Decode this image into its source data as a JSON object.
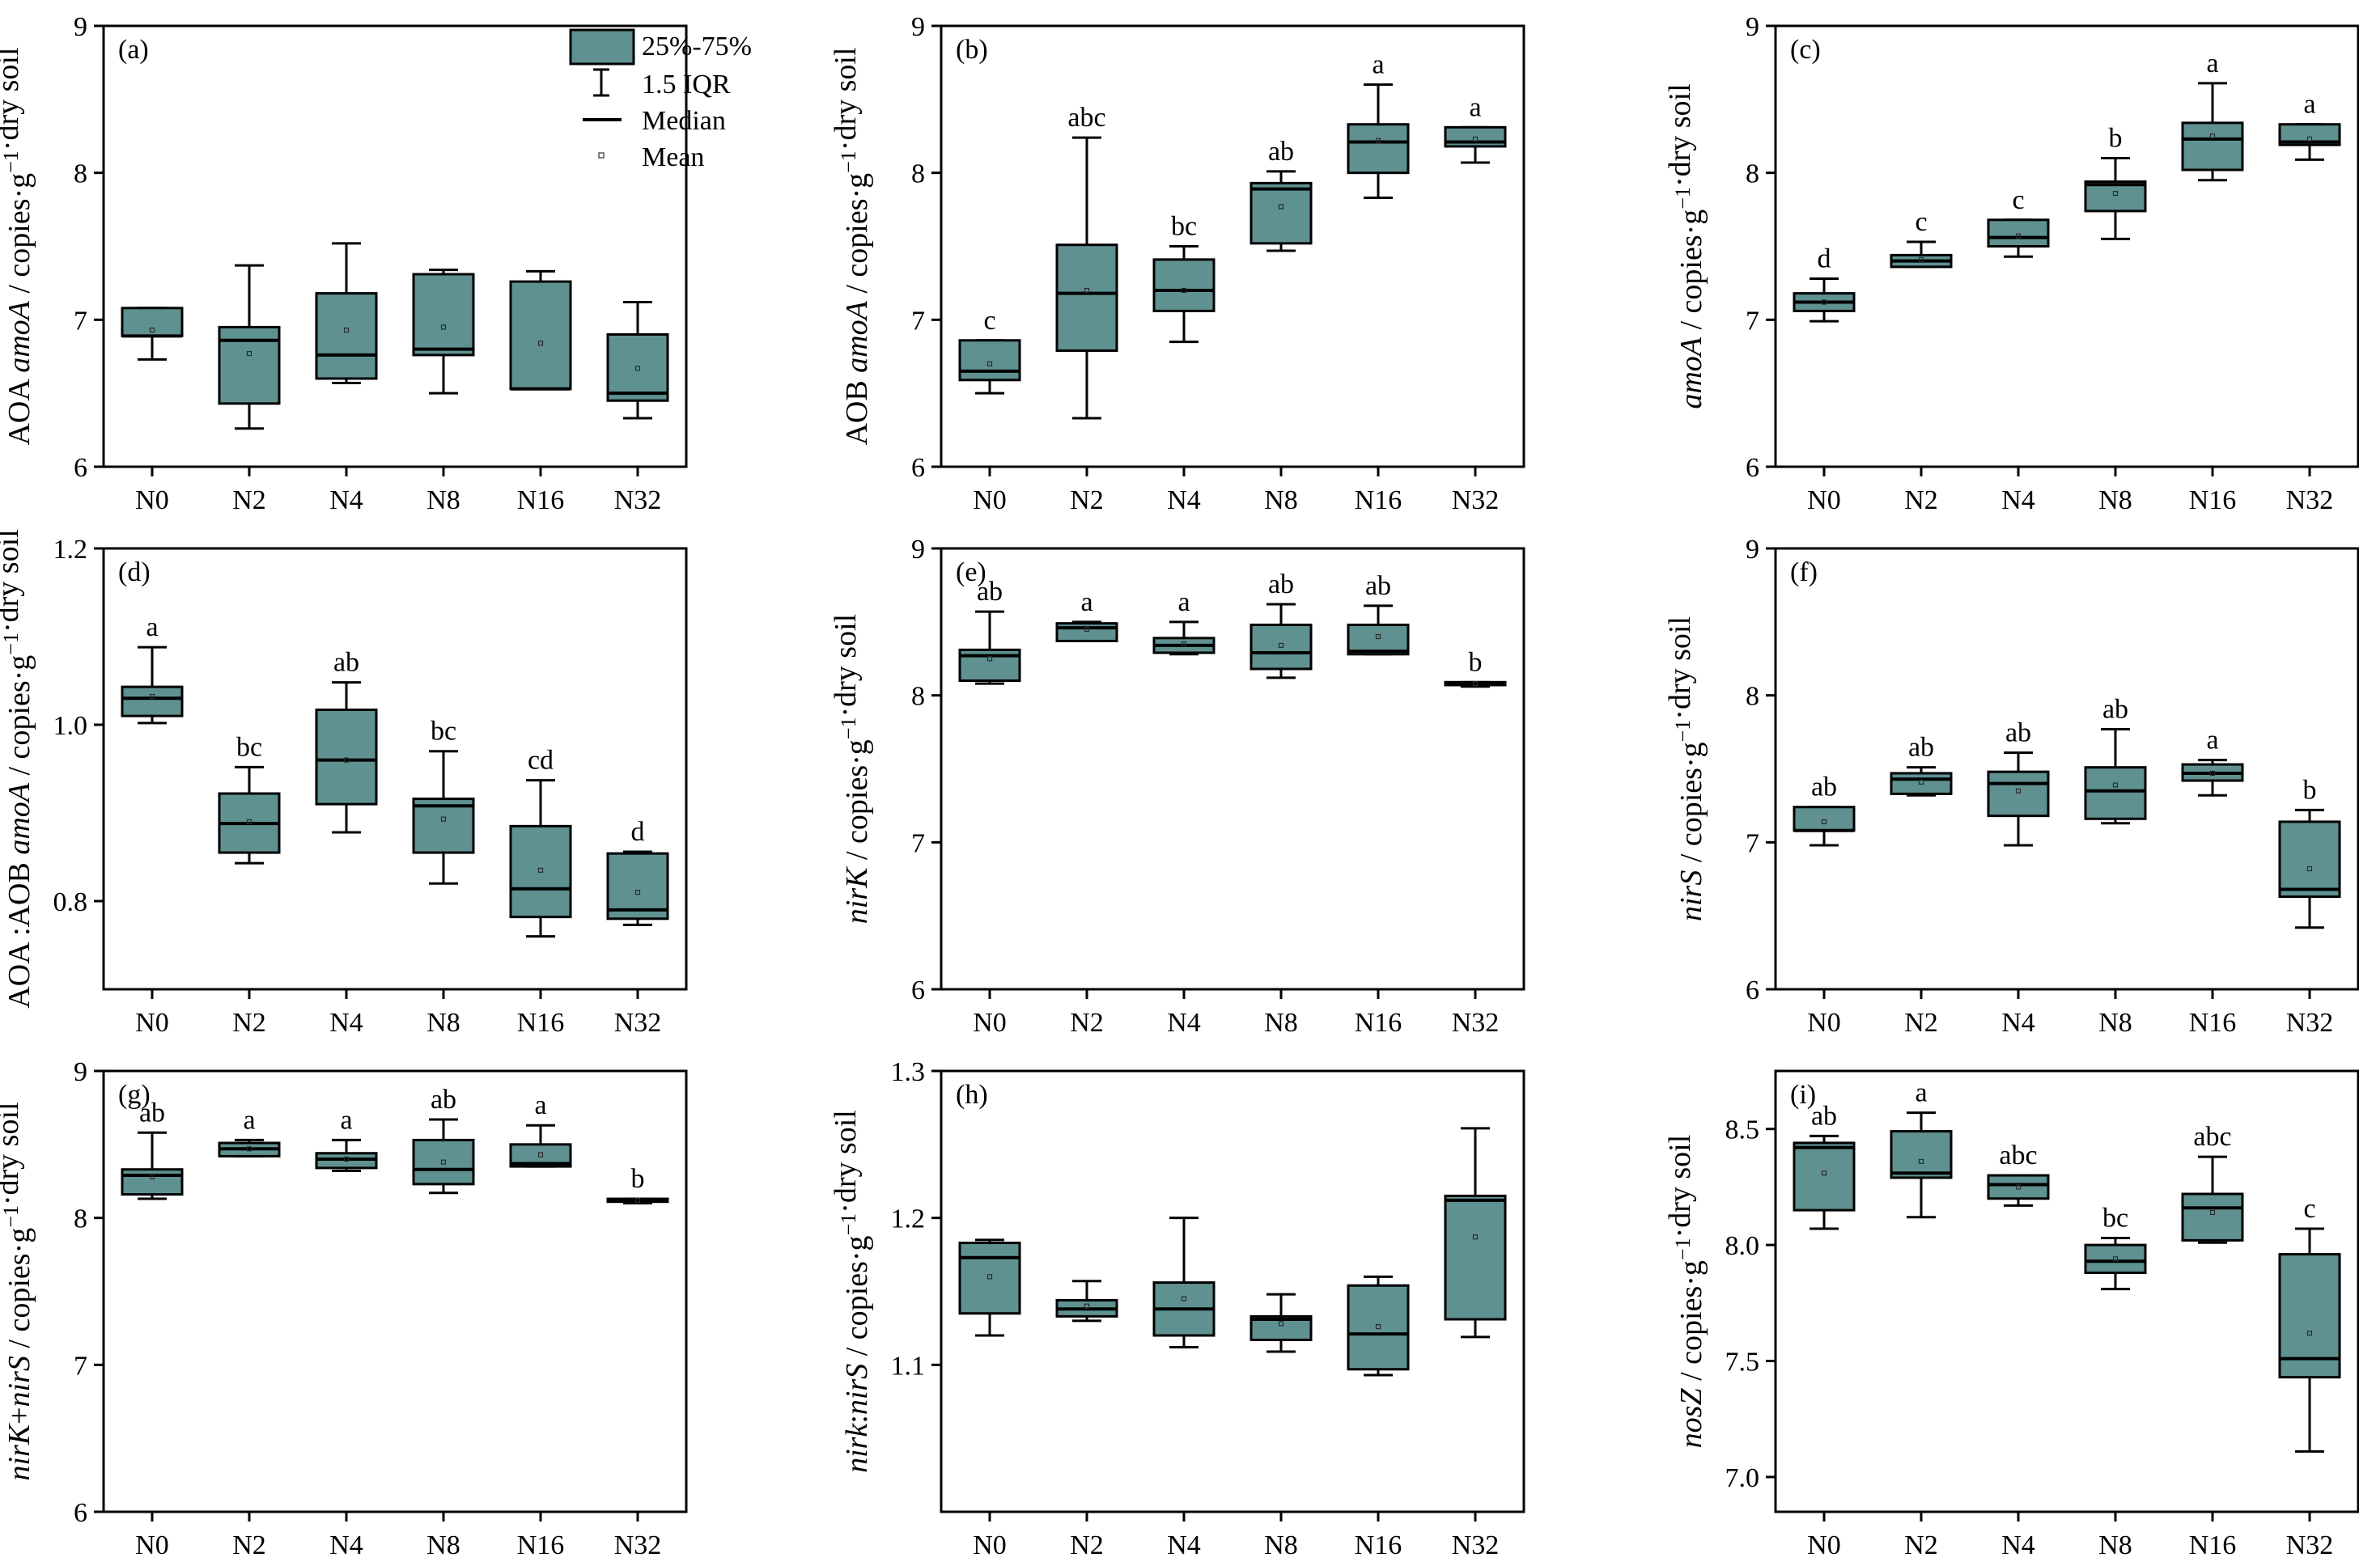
{
  "figure": {
    "box_color": "#5F9191",
    "legend": {
      "iqr_box": "25%-75%",
      "whisker": "1.5 IQR",
      "median": "Median",
      "mean": "Mean"
    }
  },
  "chart_data": [
    {
      "type": "box",
      "panel_label": "(a)",
      "ylabel_parts": [
        [
          "AOA ",
          false
        ],
        [
          "amoA",
          true
        ],
        [
          " / copies·g",
          false
        ],
        [
          "−1",
          false,
          "sup"
        ],
        [
          "·dry soil",
          false
        ]
      ],
      "ylim": [
        6,
        9
      ],
      "yticks": [
        "6",
        "7",
        "8",
        "9"
      ],
      "categories": [
        "N0",
        "N2",
        "N4",
        "N8",
        "N16",
        "N32"
      ],
      "boxes": [
        {
          "q1": 6.89,
          "median": 6.89,
          "q3": 7.08,
          "wlow": 6.73,
          "whigh": 7.08,
          "mean": 6.93,
          "letter": ""
        },
        {
          "q1": 6.43,
          "median": 6.86,
          "q3": 6.95,
          "wlow": 6.26,
          "whigh": 7.37,
          "mean": 6.77,
          "letter": ""
        },
        {
          "q1": 6.6,
          "median": 6.76,
          "q3": 7.18,
          "wlow": 6.57,
          "whigh": 7.52,
          "mean": 6.93,
          "letter": ""
        },
        {
          "q1": 6.76,
          "median": 6.8,
          "q3": 7.31,
          "wlow": 6.5,
          "whigh": 7.34,
          "mean": 6.95,
          "letter": ""
        },
        {
          "q1": 6.53,
          "median": 6.53,
          "q3": 7.26,
          "wlow": 6.53,
          "whigh": 7.33,
          "mean": 6.84,
          "letter": ""
        },
        {
          "q1": 6.45,
          "median": 6.5,
          "q3": 6.9,
          "wlow": 6.33,
          "whigh": 7.12,
          "mean": 6.67,
          "letter": ""
        }
      ]
    },
    {
      "type": "box",
      "panel_label": "(b)",
      "ylabel_parts": [
        [
          "AOB ",
          false
        ],
        [
          "amoA",
          true
        ],
        [
          " / copies·g",
          false
        ],
        [
          "−1",
          false,
          "sup"
        ],
        [
          "·dry soil",
          false
        ]
      ],
      "ylim": [
        6,
        9
      ],
      "yticks": [
        "6",
        "7",
        "8",
        "9"
      ],
      "categories": [
        "N0",
        "N2",
        "N4",
        "N8",
        "N16",
        "N32"
      ],
      "boxes": [
        {
          "q1": 6.59,
          "median": 6.65,
          "q3": 6.86,
          "wlow": 6.5,
          "whigh": 6.86,
          "mean": 6.7,
          "letter": "c"
        },
        {
          "q1": 6.79,
          "median": 7.18,
          "q3": 7.51,
          "wlow": 6.33,
          "whigh": 8.24,
          "mean": 7.2,
          "letter": "abc"
        },
        {
          "q1": 7.06,
          "median": 7.2,
          "q3": 7.41,
          "wlow": 6.85,
          "whigh": 7.5,
          "mean": 7.2,
          "letter": "bc"
        },
        {
          "q1": 7.52,
          "median": 7.89,
          "q3": 7.93,
          "wlow": 7.47,
          "whigh": 8.01,
          "mean": 7.77,
          "letter": "ab"
        },
        {
          "q1": 8.0,
          "median": 8.21,
          "q3": 8.33,
          "wlow": 7.83,
          "whigh": 8.6,
          "mean": 8.22,
          "letter": "a"
        },
        {
          "q1": 8.18,
          "median": 8.21,
          "q3": 8.31,
          "wlow": 8.07,
          "whigh": 8.31,
          "mean": 8.23,
          "letter": "a"
        }
      ]
    },
    {
      "type": "box",
      "panel_label": "(c)",
      "ylabel_parts": [
        [
          "amoA",
          true
        ],
        [
          " / copies·g",
          false
        ],
        [
          "−1",
          false,
          "sup"
        ],
        [
          "·dry soil",
          false
        ]
      ],
      "ylim": [
        6,
        9
      ],
      "yticks": [
        "6",
        "7",
        "8",
        "9"
      ],
      "categories": [
        "N0",
        "N2",
        "N4",
        "N8",
        "N16",
        "N32"
      ],
      "boxes": [
        {
          "q1": 7.06,
          "median": 7.12,
          "q3": 7.18,
          "wlow": 6.99,
          "whigh": 7.28,
          "mean": 7.12,
          "letter": "d"
        },
        {
          "q1": 7.36,
          "median": 7.4,
          "q3": 7.44,
          "wlow": 7.36,
          "whigh": 7.53,
          "mean": 7.41,
          "letter": "c"
        },
        {
          "q1": 7.5,
          "median": 7.56,
          "q3": 7.68,
          "wlow": 7.43,
          "whigh": 7.68,
          "mean": 7.57,
          "letter": "c"
        },
        {
          "q1": 7.74,
          "median": 7.92,
          "q3": 7.94,
          "wlow": 7.55,
          "whigh": 8.1,
          "mean": 7.86,
          "letter": "b"
        },
        {
          "q1": 8.02,
          "median": 8.23,
          "q3": 8.34,
          "wlow": 7.95,
          "whigh": 8.61,
          "mean": 8.25,
          "letter": "a"
        },
        {
          "q1": 8.19,
          "median": 8.21,
          "q3": 8.33,
          "wlow": 8.09,
          "whigh": 8.33,
          "mean": 8.23,
          "letter": "a"
        }
      ]
    },
    {
      "type": "box",
      "panel_label": "(d)",
      "ylabel_parts": [
        [
          "AOA :AOB ",
          false
        ],
        [
          "amoA",
          true
        ],
        [
          " / copies·g",
          false
        ],
        [
          "−1",
          false,
          "sup"
        ],
        [
          "·dry soil",
          false
        ]
      ],
      "ylim": [
        0.7,
        1.2
      ],
      "yticks": [
        "0.8",
        "1.0",
        "1.2"
      ],
      "categories": [
        "N0",
        "N2",
        "N4",
        "N8",
        "N16",
        "N32"
      ],
      "boxes": [
        {
          "q1": 1.01,
          "median": 1.03,
          "q3": 1.043,
          "wlow": 1.002,
          "whigh": 1.088,
          "mean": 1.032,
          "letter": "a"
        },
        {
          "q1": 0.855,
          "median": 0.888,
          "q3": 0.922,
          "wlow": 0.843,
          "whigh": 0.952,
          "mean": 0.89,
          "letter": "bc"
        },
        {
          "q1": 0.91,
          "median": 0.96,
          "q3": 1.017,
          "wlow": 0.878,
          "whigh": 1.048,
          "mean": 0.96,
          "letter": "ab"
        },
        {
          "q1": 0.855,
          "median": 0.908,
          "q3": 0.916,
          "wlow": 0.82,
          "whigh": 0.97,
          "mean": 0.893,
          "letter": "bc"
        },
        {
          "q1": 0.782,
          "median": 0.814,
          "q3": 0.885,
          "wlow": 0.76,
          "whigh": 0.937,
          "mean": 0.835,
          "letter": "cd"
        },
        {
          "q1": 0.78,
          "median": 0.79,
          "q3": 0.854,
          "wlow": 0.773,
          "whigh": 0.856,
          "mean": 0.81,
          "letter": "d"
        }
      ]
    },
    {
      "type": "box",
      "panel_label": "(e)",
      "ylabel_parts": [
        [
          "nirK",
          true
        ],
        [
          " / copies·g",
          false
        ],
        [
          "−1",
          false,
          "sup"
        ],
        [
          "·dry soil",
          false
        ]
      ],
      "ylim": [
        6,
        9
      ],
      "yticks": [
        "6",
        "7",
        "8",
        "9"
      ],
      "categories": [
        "N0",
        "N2",
        "N4",
        "N8",
        "N16",
        "N32"
      ],
      "boxes": [
        {
          "q1": 8.1,
          "median": 8.27,
          "q3": 8.31,
          "wlow": 8.08,
          "whigh": 8.57,
          "mean": 8.25,
          "letter": "ab"
        },
        {
          "q1": 8.37,
          "median": 8.46,
          "q3": 8.49,
          "wlow": 8.37,
          "whigh": 8.5,
          "mean": 8.45,
          "letter": "a"
        },
        {
          "q1": 8.29,
          "median": 8.34,
          "q3": 8.39,
          "wlow": 8.28,
          "whigh": 8.5,
          "mean": 8.35,
          "letter": "a"
        },
        {
          "q1": 8.18,
          "median": 8.29,
          "q3": 8.48,
          "wlow": 8.12,
          "whigh": 8.62,
          "mean": 8.34,
          "letter": "ab"
        },
        {
          "q1": 8.28,
          "median": 8.3,
          "q3": 8.48,
          "wlow": 8.28,
          "whigh": 8.61,
          "mean": 8.4,
          "letter": "ab"
        },
        {
          "q1": 8.07,
          "median": 8.08,
          "q3": 8.09,
          "wlow": 8.06,
          "whigh": 8.09,
          "mean": 8.08,
          "letter": "b"
        }
      ]
    },
    {
      "type": "box",
      "panel_label": "(f)",
      "ylabel_parts": [
        [
          "nirS",
          true
        ],
        [
          " / copies·g",
          false
        ],
        [
          "−1",
          false,
          "sup"
        ],
        [
          "·dry soil",
          false
        ]
      ],
      "ylim": [
        6,
        9
      ],
      "yticks": [
        "6",
        "7",
        "8",
        "9"
      ],
      "categories": [
        "N0",
        "N2",
        "N4",
        "N8",
        "N16",
        "N32"
      ],
      "boxes": [
        {
          "q1": 7.08,
          "median": 7.08,
          "q3": 7.24,
          "wlow": 6.98,
          "whigh": 7.24,
          "mean": 7.14,
          "letter": "ab"
        },
        {
          "q1": 7.33,
          "median": 7.43,
          "q3": 7.47,
          "wlow": 7.32,
          "whigh": 7.51,
          "mean": 7.41,
          "letter": "ab"
        },
        {
          "q1": 7.18,
          "median": 7.4,
          "q3": 7.48,
          "wlow": 6.98,
          "whigh": 7.61,
          "mean": 7.35,
          "letter": "ab"
        },
        {
          "q1": 7.16,
          "median": 7.35,
          "q3": 7.51,
          "wlow": 7.13,
          "whigh": 7.77,
          "mean": 7.39,
          "letter": "ab"
        },
        {
          "q1": 7.42,
          "median": 7.47,
          "q3": 7.53,
          "wlow": 7.32,
          "whigh": 7.56,
          "mean": 7.47,
          "letter": "a"
        },
        {
          "q1": 6.63,
          "median": 6.68,
          "q3": 7.14,
          "wlow": 6.42,
          "whigh": 7.22,
          "mean": 6.82,
          "letter": "b"
        }
      ]
    },
    {
      "type": "box",
      "panel_label": "(g)",
      "ylabel_parts": [
        [
          "nirK",
          true
        ],
        [
          "+",
          false
        ],
        [
          "nirS",
          true
        ],
        [
          " / copies·g",
          false
        ],
        [
          "−1",
          false,
          "sup"
        ],
        [
          "·dry soil",
          false
        ]
      ],
      "ylim": [
        6,
        9
      ],
      "yticks": [
        "6",
        "7",
        "8",
        "9"
      ],
      "categories": [
        "N0",
        "N2",
        "N4",
        "N8",
        "N16",
        "N32"
      ],
      "boxes": [
        {
          "q1": 8.16,
          "median": 8.29,
          "q3": 8.33,
          "wlow": 8.13,
          "whigh": 8.58,
          "mean": 8.28,
          "letter": "ab"
        },
        {
          "q1": 8.42,
          "median": 8.47,
          "q3": 8.51,
          "wlow": 8.42,
          "whigh": 8.53,
          "mean": 8.47,
          "letter": "a"
        },
        {
          "q1": 8.34,
          "median": 8.4,
          "q3": 8.44,
          "wlow": 8.32,
          "whigh": 8.53,
          "mean": 8.4,
          "letter": "a"
        },
        {
          "q1": 8.23,
          "median": 8.33,
          "q3": 8.53,
          "wlow": 8.17,
          "whigh": 8.67,
          "mean": 8.38,
          "letter": "ab"
        },
        {
          "q1": 8.35,
          "median": 8.37,
          "q3": 8.5,
          "wlow": 8.35,
          "whigh": 8.63,
          "mean": 8.43,
          "letter": "a"
        },
        {
          "q1": 8.11,
          "median": 8.12,
          "q3": 8.13,
          "wlow": 8.1,
          "whigh": 8.13,
          "mean": 8.12,
          "letter": "b"
        }
      ]
    },
    {
      "type": "box",
      "panel_label": "(h)",
      "ylabel_parts": [
        [
          "nirk",
          true
        ],
        [
          ":",
          false
        ],
        [
          "nirS",
          true
        ],
        [
          " / copies·g",
          false
        ],
        [
          "−1",
          false,
          "sup"
        ],
        [
          "·dry soil",
          false
        ]
      ],
      "ylim": [
        1.0,
        1.3
      ],
      "yticks": [
        "1.1",
        "1.2",
        "1.3"
      ],
      "categories": [
        "N0",
        "N2",
        "N4",
        "N8",
        "N16",
        "N32"
      ],
      "boxes": [
        {
          "q1": 1.135,
          "median": 1.173,
          "q3": 1.183,
          "wlow": 1.12,
          "whigh": 1.185,
          "mean": 1.16,
          "letter": ""
        },
        {
          "q1": 1.133,
          "median": 1.138,
          "q3": 1.144,
          "wlow": 1.13,
          "whigh": 1.157,
          "mean": 1.14,
          "letter": ""
        },
        {
          "q1": 1.12,
          "median": 1.138,
          "q3": 1.156,
          "wlow": 1.112,
          "whigh": 1.2,
          "mean": 1.145,
          "letter": ""
        },
        {
          "q1": 1.117,
          "median": 1.131,
          "q3": 1.133,
          "wlow": 1.109,
          "whigh": 1.148,
          "mean": 1.128,
          "letter": ""
        },
        {
          "q1": 1.097,
          "median": 1.121,
          "q3": 1.154,
          "wlow": 1.093,
          "whigh": 1.16,
          "mean": 1.126,
          "letter": ""
        },
        {
          "q1": 1.131,
          "median": 1.212,
          "q3": 1.215,
          "wlow": 1.119,
          "whigh": 1.261,
          "mean": 1.187,
          "letter": ""
        }
      ]
    },
    {
      "type": "box",
      "panel_label": "(i)",
      "ylabel_parts": [
        [
          "nosZ",
          true
        ],
        [
          " / copies·g",
          false
        ],
        [
          "−1",
          false,
          "sup"
        ],
        [
          "·dry soil",
          false
        ]
      ],
      "ylim": [
        6.85,
        8.75
      ],
      "yticks": [
        "7.0",
        "7.5",
        "8.0",
        "8.5"
      ],
      "categories": [
        "N0",
        "N2",
        "N4",
        "N8",
        "N16",
        "N32"
      ],
      "boxes": [
        {
          "q1": 8.15,
          "median": 8.42,
          "q3": 8.44,
          "wlow": 8.07,
          "whigh": 8.47,
          "mean": 8.31,
          "letter": "ab"
        },
        {
          "q1": 8.29,
          "median": 8.31,
          "q3": 8.49,
          "wlow": 8.12,
          "whigh": 8.57,
          "mean": 8.36,
          "letter": "a"
        },
        {
          "q1": 8.2,
          "median": 8.26,
          "q3": 8.3,
          "wlow": 8.17,
          "whigh": 8.3,
          "mean": 8.25,
          "letter": "abc"
        },
        {
          "q1": 7.88,
          "median": 7.93,
          "q3": 8.0,
          "wlow": 7.81,
          "whigh": 8.03,
          "mean": 7.94,
          "letter": "bc"
        },
        {
          "q1": 8.02,
          "median": 8.16,
          "q3": 8.22,
          "wlow": 8.01,
          "whigh": 8.38,
          "mean": 8.14,
          "letter": "abc"
        },
        {
          "q1": 7.43,
          "median": 7.51,
          "q3": 7.96,
          "wlow": 7.11,
          "whigh": 8.07,
          "mean": 7.62,
          "letter": "c"
        }
      ]
    }
  ]
}
